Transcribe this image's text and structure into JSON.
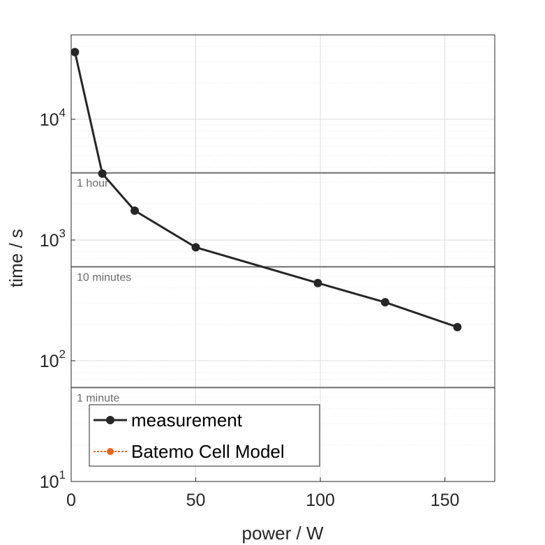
{
  "chart_data": {
    "type": "line",
    "title": "",
    "xlabel": "power / W",
    "ylabel": "time / s",
    "xlim": [
      0,
      170
    ],
    "ylim": [
      10,
      50000
    ],
    "yscale": "log",
    "grid": true,
    "xticks": [
      {
        "value": 0,
        "label": "0"
      },
      {
        "value": 50,
        "label": "50"
      },
      {
        "value": 100,
        "label": "100"
      },
      {
        "value": 150,
        "label": "150"
      }
    ],
    "yticks": [
      {
        "value": 10,
        "base": "10",
        "exp": "1"
      },
      {
        "value": 100,
        "base": "10",
        "exp": "2"
      },
      {
        "value": 1000,
        "base": "10",
        "exp": "3"
      },
      {
        "value": 10000,
        "base": "10",
        "exp": "4"
      }
    ],
    "series": [
      {
        "name": "measurement",
        "color": "#262626",
        "x": [
          1.5,
          12.5,
          25.5,
          50,
          99,
          126,
          155
        ],
        "y": [
          36000,
          3550,
          1750,
          870,
          440,
          305,
          190
        ]
      },
      {
        "name": "Batemo Cell Model",
        "color": "#e8641b",
        "x": [],
        "y": []
      }
    ],
    "reference_lines": [
      {
        "value": 3600,
        "label": "1 hour"
      },
      {
        "value": 600,
        "label": "10 minutes"
      },
      {
        "value": 60,
        "label": "1 minute"
      }
    ],
    "legend_position": "bottom-left"
  }
}
